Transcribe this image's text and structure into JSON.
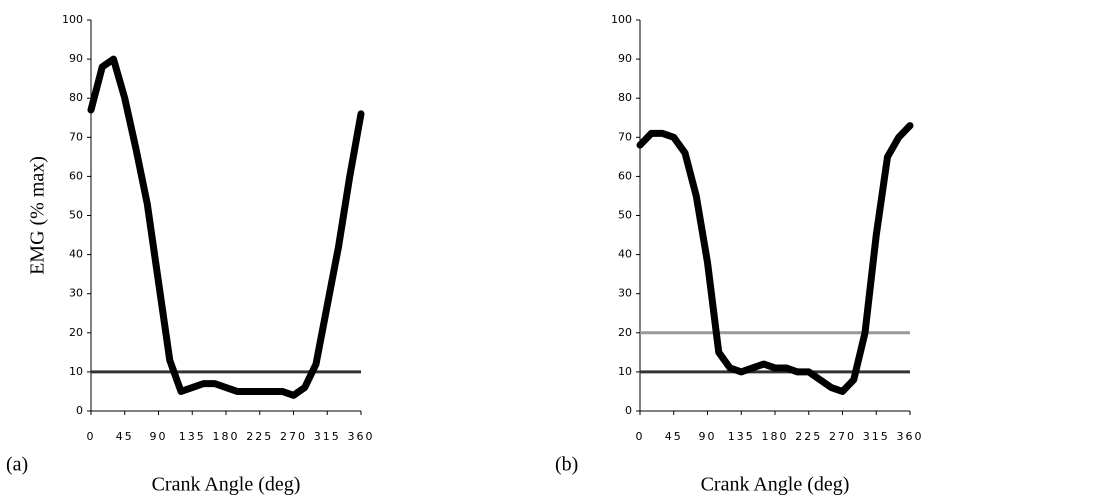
{
  "chart_data": [
    {
      "type": "line",
      "label": "(a)",
      "xlabel": "Crank Angle (deg)",
      "ylabel": "EMG (% max)",
      "x": [
        0,
        15,
        30,
        45,
        60,
        75,
        90,
        105,
        120,
        135,
        150,
        165,
        180,
        195,
        210,
        225,
        240,
        255,
        270,
        285,
        300,
        315,
        330,
        345,
        360
      ],
      "series": [
        {
          "color": "#000000",
          "values": [
            77,
            88,
            90,
            80,
            67,
            53,
            33,
            13,
            5,
            6,
            7,
            7,
            6,
            5,
            5,
            5,
            5,
            5,
            4,
            6,
            12,
            27,
            42,
            60,
            76
          ]
        }
      ],
      "hlines": [
        {
          "value": 10,
          "color": "#333333"
        }
      ],
      "xlim": [
        0,
        360
      ],
      "xticks": [
        0,
        45,
        90,
        135,
        180,
        225,
        270,
        315,
        360
      ],
      "ylim": [
        0,
        100
      ],
      "yticks": [
        0,
        10,
        20,
        30,
        40,
        50,
        60,
        70,
        80,
        90,
        100
      ]
    },
    {
      "type": "line",
      "label": "(b)",
      "xlabel": "Crank Angle (deg)",
      "x": [
        0,
        15,
        30,
        45,
        60,
        75,
        90,
        105,
        120,
        135,
        150,
        165,
        180,
        195,
        210,
        225,
        240,
        255,
        270,
        285,
        300,
        315,
        330,
        345,
        360
      ],
      "series": [
        {
          "color": "#000000",
          "values": [
            68,
            71,
            71,
            70,
            66,
            55,
            38,
            15,
            11,
            10,
            11,
            12,
            11,
            11,
            10,
            10,
            8,
            6,
            5,
            8,
            20,
            45,
            65,
            70,
            73
          ]
        }
      ],
      "hlines": [
        {
          "value": 10,
          "color": "#333333"
        },
        {
          "value": 20,
          "color": "#999999"
        }
      ],
      "xlim": [
        0,
        360
      ],
      "xticks": [
        0,
        45,
        90,
        135,
        180,
        225,
        270,
        315,
        360
      ],
      "ylim": [
        0,
        100
      ],
      "yticks": [
        0,
        10,
        20,
        30,
        40,
        50,
        60,
        70,
        80,
        90,
        100
      ]
    }
  ]
}
